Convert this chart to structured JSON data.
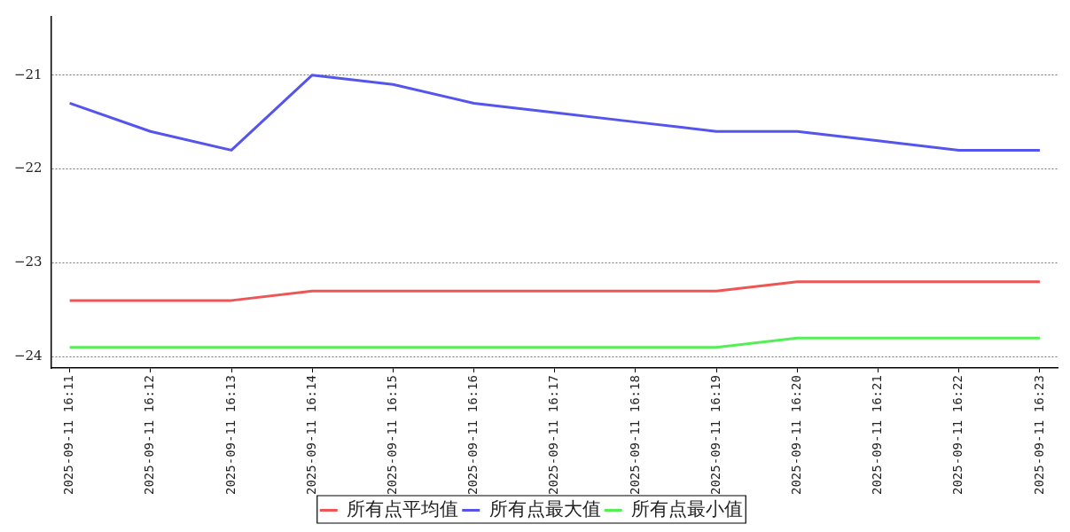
{
  "chart_data": {
    "type": "line",
    "categories": [
      "2025-09-11 16:11",
      "2025-09-11 16:12",
      "2025-09-11 16:13",
      "2025-09-11 16:14",
      "2025-09-11 16:15",
      "2025-09-11 16:16",
      "2025-09-11 16:17",
      "2025-09-11 16:18",
      "2025-09-11 16:19",
      "2025-09-11 16:20",
      "2025-09-11 16:21",
      "2025-09-11 16:22",
      "2025-09-11 16:23"
    ],
    "series": [
      {
        "name": "所有点平均值",
        "color": "#ee5555",
        "values": [
          -23.4,
          -23.4,
          -23.4,
          -23.3,
          -23.3,
          -23.3,
          -23.3,
          -23.3,
          -23.3,
          -23.2,
          -23.2,
          -23.2,
          -23.2
        ]
      },
      {
        "name": "所有点最大值",
        "color": "#5555ee",
        "values": [
          -21.3,
          -21.6,
          -21.8,
          -21.0,
          -21.1,
          -21.3,
          -21.4,
          -21.5,
          -21.6,
          -21.6,
          -21.7,
          -21.8,
          -21.8
        ]
      },
      {
        "name": "所有点最小值",
        "color": "#55ee55",
        "values": [
          -23.9,
          -23.9,
          -23.9,
          -23.9,
          -23.9,
          -23.9,
          -23.9,
          -23.9,
          -23.9,
          -23.8,
          -23.8,
          -23.8,
          -23.8
        ]
      }
    ],
    "ylim": [
      -24.12,
      -20.38
    ],
    "yticks": [
      {
        "value": -24,
        "label": "−24"
      },
      {
        "value": -23,
        "label": "−23"
      },
      {
        "value": -22,
        "label": "−22"
      },
      {
        "value": -21,
        "label": "−21"
      }
    ],
    "grid": "y",
    "legend": "bottom",
    "marker": "none",
    "line_style": "solid"
  }
}
